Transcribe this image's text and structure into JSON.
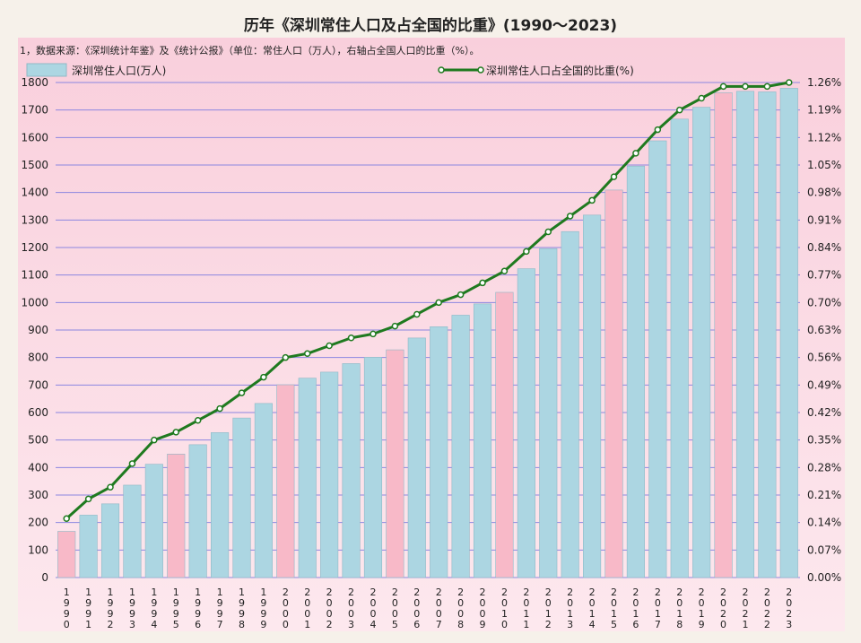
{
  "chart_data": {
    "type": "bar+line",
    "title": "历年《深圳常住人口及占全国的比重》(1990～2023)",
    "note": "1，数据来源：《深圳统计年鉴》及《统计公报》（单位：常住人口（万人），右轴占全国人口的比重（%）。",
    "legend": {
      "bar": "深圳常住人口(万人)",
      "line": "深圳常住人口占全国的比重(%)",
      "placement": "top"
    },
    "x_tick_labels": [
      "1990",
      "1991",
      "1992",
      "1993",
      "1994",
      "1995",
      "1996",
      "1997",
      "1998",
      "1999",
      "2000",
      "2001",
      "2002",
      "2003",
      "2004",
      "2005",
      "2006",
      "2007",
      "2008",
      "2009",
      "2010",
      "2011",
      "2012",
      "2013",
      "2014",
      "2015",
      "2016",
      "2017",
      "2018",
      "2019",
      "2020",
      "2021",
      "2022",
      "2023"
    ],
    "categories": [
      1990,
      1991,
      1992,
      1993,
      1994,
      1995,
      1996,
      1997,
      1998,
      1999,
      2000,
      2001,
      2002,
      2003,
      2004,
      2005,
      2006,
      2007,
      2008,
      2009,
      2010,
      2011,
      2012,
      2013,
      2014,
      2015,
      2016,
      2017,
      2018,
      2019,
      2020,
      2021,
      2022,
      2023
    ],
    "series": [
      {
        "name": "深圳常住人口(万人)",
        "type": "bar",
        "axis": "left",
        "values": [
          168,
          227,
          268,
          336,
          412,
          449,
          483,
          527,
          580,
          633,
          701,
          725,
          747,
          778,
          801,
          828,
          871,
          912,
          954,
          995,
          1037,
          1123,
          1196,
          1258,
          1318,
          1409,
          1496,
          1588,
          1667,
          1710,
          1763,
          1768,
          1766,
          1779
        ],
        "highlight_years": [
          1990,
          1995,
          2000,
          2005,
          2010,
          2015,
          2020
        ]
      },
      {
        "name": "深圳常住人口占全国的比重(%)",
        "type": "line",
        "axis": "right",
        "values": [
          0.15,
          0.2,
          0.23,
          0.29,
          0.35,
          0.37,
          0.4,
          0.43,
          0.47,
          0.51,
          0.56,
          0.57,
          0.59,
          0.61,
          0.62,
          0.64,
          0.67,
          0.7,
          0.72,
          0.75,
          0.78,
          0.83,
          0.88,
          0.92,
          0.96,
          1.02,
          1.08,
          1.14,
          1.19,
          1.22,
          1.25,
          1.25,
          1.25,
          1.26
        ]
      }
    ],
    "left_axis": {
      "min": 0,
      "max": 1800,
      "step": 100
    },
    "right_axis": {
      "min": 0,
      "max": 1.26,
      "step": 0.07,
      "tick_labels": [
        "0.00%",
        "0.07%",
        "0.14%",
        "0.21%",
        "0.28%",
        "0.35%",
        "0.42%",
        "0.49%",
        "0.56%",
        "0.63%",
        "0.70%",
        "0.77%",
        "0.84%",
        "0.91%",
        "0.98%",
        "1.05%",
        "1.12%",
        "1.19%",
        "1.26%"
      ]
    },
    "grid": true,
    "colors": {
      "bar": "#acd6e2",
      "bar_highlight": "#f8b9c8",
      "bar_stroke": "#8fb9c6",
      "line": "#1f7a1f",
      "marker_fill": "#ffffff",
      "grid": "#8b86e0",
      "background_top": "#f9cfdc",
      "background_bottom": "#fde8ee"
    }
  }
}
